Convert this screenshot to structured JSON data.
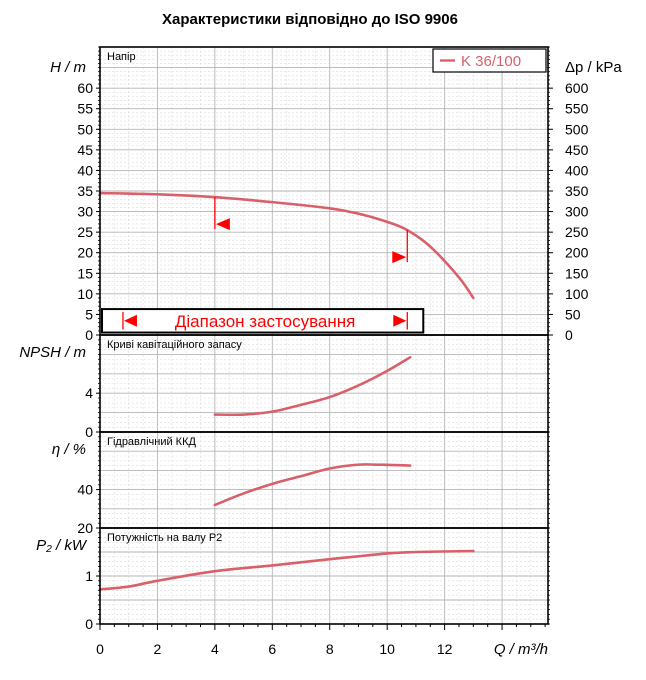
{
  "title": "Характеристики відповідно до ISO 9906",
  "colors": {
    "curve": "#d9606a",
    "range": "#ff0000",
    "grid": "#c8c8c8",
    "frame": "#000000"
  },
  "chart_data": [
    {
      "id": "head",
      "type": "line",
      "panel_label": "Напір",
      "ylabel": "H / m",
      "ylabel_right": "Δp / kPa",
      "ylim": [
        0,
        70
      ],
      "yticks": [
        0,
        5,
        10,
        15,
        20,
        25,
        30,
        35,
        40,
        45,
        50,
        55,
        60
      ],
      "yticks_right": [
        0,
        50,
        100,
        150,
        200,
        250,
        300,
        350,
        400,
        450,
        500,
        550,
        600
      ],
      "right_scale": 10,
      "legend": "K 36/100",
      "series": [
        {
          "name": "K 36/100",
          "x": [
            0,
            2,
            4,
            6,
            8,
            9,
            10,
            10.7,
            11.5,
            12.5,
            13
          ],
          "y": [
            34.5,
            34.2,
            33.5,
            32.3,
            30.8,
            29.5,
            27.5,
            25.5,
            21.5,
            14,
            9
          ]
        }
      ],
      "range_markers": [
        {
          "x": 4,
          "y": 33.5,
          "dir": "left"
        },
        {
          "x": 10.7,
          "y": 25.5,
          "dir": "right"
        }
      ],
      "range_label": "Діапазон застосування"
    },
    {
      "id": "npsh",
      "type": "line",
      "panel_label": "Криві кавітаційного запасу",
      "ylabel": "NPSH / m",
      "ylim": [
        0,
        10
      ],
      "yticks": [
        0,
        4
      ],
      "series": [
        {
          "name": "",
          "x": [
            4,
            5,
            6,
            7,
            8,
            9,
            10,
            10.8
          ],
          "y": [
            1.8,
            1.8,
            2.1,
            2.8,
            3.6,
            4.8,
            6.3,
            7.7
          ]
        }
      ]
    },
    {
      "id": "eff",
      "type": "line",
      "panel_label": "Гідравлічний ККД",
      "ylabel": "η / %",
      "ylim": [
        20,
        70
      ],
      "yticks": [
        20,
        40
      ],
      "series": [
        {
          "name": "",
          "x": [
            4,
            5,
            6,
            7,
            8,
            9,
            9.6,
            10.2,
            10.8
          ],
          "y": [
            32,
            38,
            43,
            47,
            51,
            53,
            53,
            52.8,
            52.5
          ]
        }
      ]
    },
    {
      "id": "power",
      "type": "line",
      "panel_label": "Потужність на валу P2",
      "ylabel": "P₂ / kW",
      "ylim": [
        0,
        2
      ],
      "yticks": [
        0,
        1
      ],
      "series": [
        {
          "name": "",
          "x": [
            0,
            1,
            2,
            4,
            6,
            8,
            10,
            11,
            13
          ],
          "y": [
            0.72,
            0.78,
            0.9,
            1.1,
            1.22,
            1.35,
            1.47,
            1.5,
            1.52
          ]
        }
      ]
    }
  ],
  "xaxis": {
    "label": "Q / m³/h",
    "ticks": [
      0,
      2,
      4,
      6,
      8,
      10,
      12
    ],
    "xlim": [
      0,
      15.6
    ]
  }
}
